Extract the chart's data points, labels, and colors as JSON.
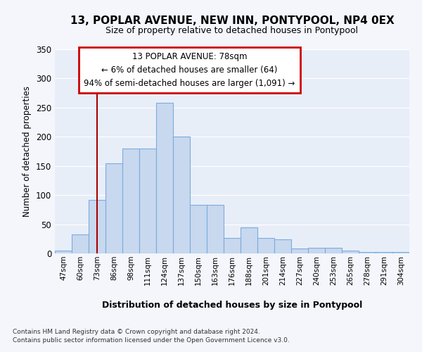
{
  "title": "13, POPLAR AVENUE, NEW INN, PONTYPOOL, NP4 0EX",
  "subtitle": "Size of property relative to detached houses in Pontypool",
  "xlabel": "Distribution of detached houses by size in Pontypool",
  "ylabel": "Number of detached properties",
  "categories": [
    "47sqm",
    "60sqm",
    "73sqm",
    "86sqm",
    "98sqm",
    "111sqm",
    "124sqm",
    "137sqm",
    "150sqm",
    "163sqm",
    "176sqm",
    "188sqm",
    "201sqm",
    "214sqm",
    "227sqm",
    "240sqm",
    "253sqm",
    "265sqm",
    "278sqm",
    "291sqm",
    "304sqm"
  ],
  "values": [
    5,
    33,
    92,
    155,
    180,
    180,
    258,
    200,
    83,
    83,
    27,
    45,
    27,
    24,
    8,
    10,
    10,
    5,
    3,
    3,
    3
  ],
  "bar_color": "#c8d8ee",
  "bar_edge_color": "#7aace0",
  "vline_x": 2.0,
  "vline_color": "#aa0000",
  "annotation_text": "13 POPLAR AVENUE: 78sqm\n← 6% of detached houses are smaller (64)\n94% of semi-detached houses are larger (1,091) →",
  "annotation_box_color": "#cc0000",
  "ylim": [
    0,
    350
  ],
  "yticks": [
    0,
    50,
    100,
    150,
    200,
    250,
    300,
    350
  ],
  "background_color": "#e8eef8",
  "grid_color": "#ffffff",
  "title_fontsize": 11,
  "subtitle_fontsize": 9,
  "footnote1": "Contains HM Land Registry data © Crown copyright and database right 2024.",
  "footnote2": "Contains public sector information licensed under the Open Government Licence v3.0."
}
